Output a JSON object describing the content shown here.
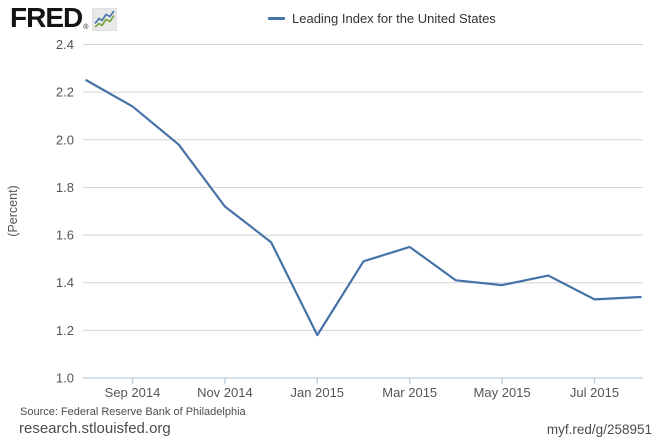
{
  "header": {
    "logo_text": "FRED",
    "logo_reg": "®",
    "logo_icon": "line-chart-icon",
    "legend": {
      "series_label": "Leading Index for the United States",
      "swatch_color": "#4572a7"
    }
  },
  "chart_data": {
    "type": "line",
    "title": "Leading Index for the United States",
    "ylabel": "(Percent)",
    "xlabel": "",
    "legend_position": "top",
    "grid": true,
    "x": [
      "Aug 2014",
      "Sep 2014",
      "Oct 2014",
      "Nov 2014",
      "Dec 2014",
      "Jan 2015",
      "Feb 2015",
      "Mar 2015",
      "Apr 2015",
      "May 2015",
      "Jun 2015",
      "Jul 2015",
      "Aug 2015"
    ],
    "values": [
      2.25,
      2.14,
      1.98,
      1.72,
      1.57,
      1.18,
      1.49,
      1.55,
      1.41,
      1.39,
      1.43,
      1.33,
      1.34
    ],
    "ylim": [
      1.0,
      2.4
    ],
    "y_tick_values": [
      1.0,
      1.2,
      1.4,
      1.6,
      1.8,
      2.0,
      2.2,
      2.4
    ],
    "y_tick_labels": [
      "1.0",
      "1.2",
      "1.4",
      "1.6",
      "1.8",
      "2.0",
      "2.2",
      "2.4"
    ],
    "x_ticks": [
      {
        "label": "Sep 2014",
        "month_index": 1
      },
      {
        "label": "Nov 2014",
        "month_index": 3
      },
      {
        "label": "Jan 2015",
        "month_index": 5
      },
      {
        "label": "Mar 2015",
        "month_index": 7
      },
      {
        "label": "May 2015",
        "month_index": 9
      },
      {
        "label": "Jul 2015",
        "month_index": 11
      }
    ],
    "line_color": "#4572a7",
    "grid_color": "#d3d3d3",
    "axis_color": "#b9cddd",
    "tick_label_color": "#555555"
  },
  "footer": {
    "source": "Source: Federal Reserve Bank of Philadelphia",
    "site": "research.stlouisfed.org",
    "short_url": "myf.red/g/258951"
  }
}
